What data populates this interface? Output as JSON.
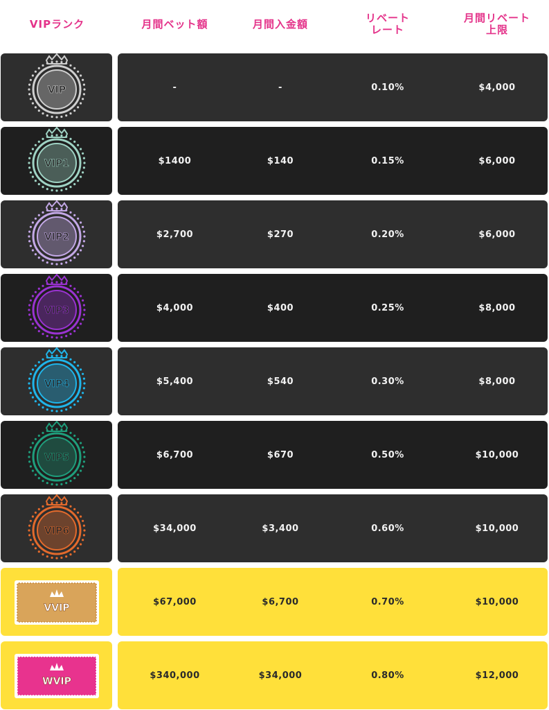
{
  "headers": {
    "rank": [
      "VIPランク"
    ],
    "bet": [
      "月間ベット額"
    ],
    "deposit": [
      "月間入金額"
    ],
    "rebate": [
      "リベート",
      "レート"
    ],
    "limit": [
      "月間リベート",
      "上限"
    ]
  },
  "rows": [
    {
      "badge": "VIP",
      "bet": "-",
      "deposit": "-",
      "rebate": "0.10%",
      "limit": "$4,000"
    },
    {
      "badge": "VIP1",
      "bet": "$1400",
      "deposit": "$140",
      "rebate": "0.15%",
      "limit": "$6,000"
    },
    {
      "badge": "VIP2",
      "bet": "$2,700",
      "deposit": "$270",
      "rebate": "0.20%",
      "limit": "$6,000"
    },
    {
      "badge": "VIP3",
      "bet": "$4,000",
      "deposit": "$400",
      "rebate": "0.25%",
      "limit": "$8,000"
    },
    {
      "badge": "VIP4",
      "bet": "$5,400",
      "deposit": "$540",
      "rebate": "0.30%",
      "limit": "$8,000"
    },
    {
      "badge": "VIP5",
      "bet": "$6,700",
      "deposit": "$670",
      "rebate": "0.50%",
      "limit": "$10,000"
    },
    {
      "badge": "VIP6",
      "bet": "$34,000",
      "deposit": "$3,400",
      "rebate": "0.60%",
      "limit": "$10,000"
    },
    {
      "badge": "VVIP",
      "bet": "$67,000",
      "deposit": "$6,700",
      "rebate": "0.70%",
      "limit": "$10,000"
    },
    {
      "badge": "WVIP",
      "bet": "$340,000",
      "deposit": "$34,000",
      "rebate": "0.80%",
      "limit": "$12,000"
    }
  ],
  "colors": {
    "header_text": "#e4338a",
    "dark_row_a": "#2e2e2e",
    "dark_row_b": "#1f1f1f",
    "gold_row": "#ffe03a",
    "badge_vip": "#cfcfcf",
    "badge_vip1": "#9fd3c4",
    "badge_vip2": "#c3a8e6",
    "badge_vip3": "#9a33d1",
    "badge_vip4": "#1fb5ea",
    "badge_vip5": "#1f9e7c",
    "badge_vip6": "#e36a2c",
    "badge_vvip": "#d9a45a",
    "badge_wvip": "#e8338e"
  }
}
